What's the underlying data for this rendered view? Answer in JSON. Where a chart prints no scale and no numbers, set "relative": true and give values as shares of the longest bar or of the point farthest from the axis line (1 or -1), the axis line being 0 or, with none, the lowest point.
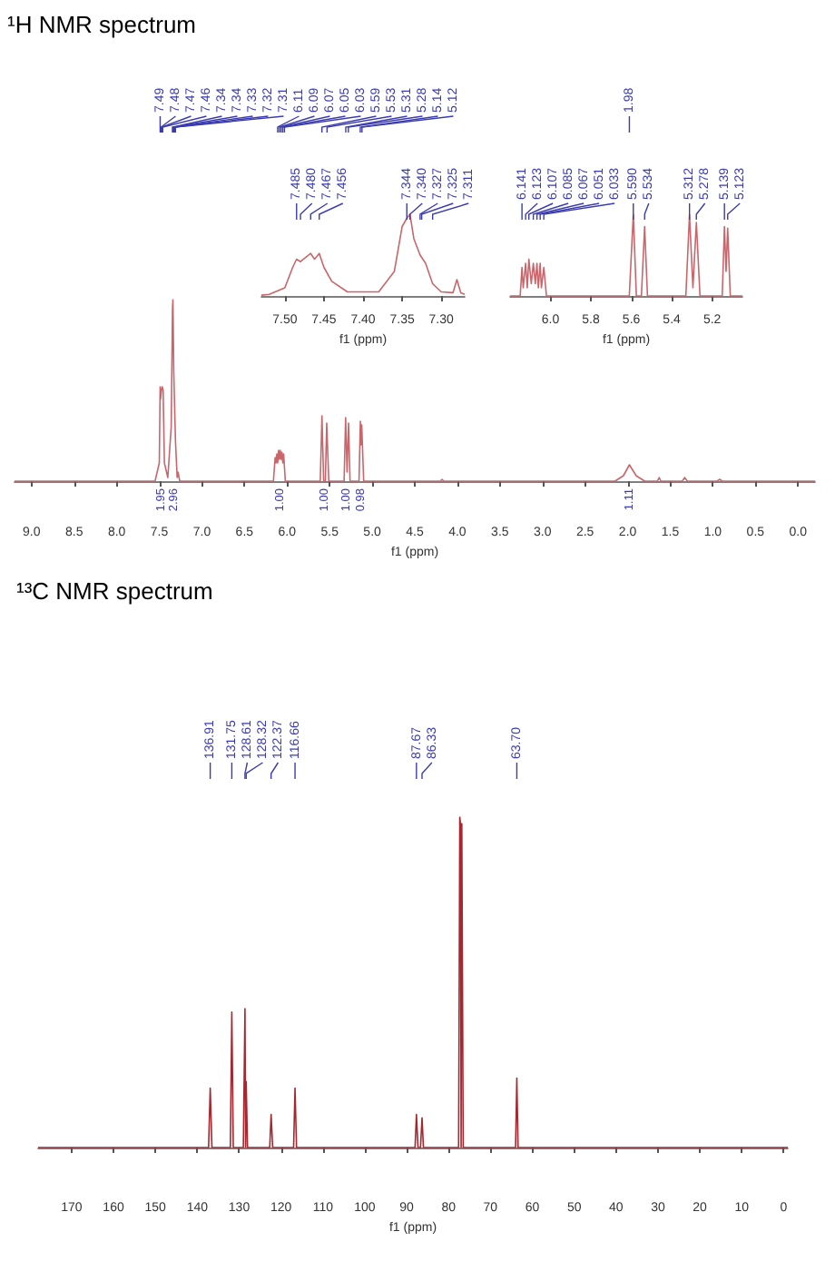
{
  "chart_data": [
    {
      "type": "line",
      "xlabel": "f1 (ppm)",
      "relative": true,
      "color": "#c9666c",
      "xlim": [
        9.2,
        -0.2
      ],
      "xticks": [
        {
          "value": 9,
          "label": "9.0"
        },
        {
          "value": 8.5,
          "label": "8.5"
        },
        {
          "value": 8,
          "label": "8.0"
        },
        {
          "value": 7.5,
          "label": "7.5"
        },
        {
          "value": 7,
          "label": "7.0"
        },
        {
          "value": 6.5,
          "label": "6.5"
        },
        {
          "value": 6,
          "label": "6.0"
        },
        {
          "value": 5.5,
          "label": "5.5"
        },
        {
          "value": 5,
          "label": "5.0"
        },
        {
          "value": 4.5,
          "label": "4.5"
        },
        {
          "value": 4,
          "label": "4.0"
        },
        {
          "value": 3.5,
          "label": "3.5"
        },
        {
          "value": 3,
          "label": "3.0"
        },
        {
          "value": 2.5,
          "label": "2.5"
        },
        {
          "value": 2,
          "label": "2.0"
        },
        {
          "value": 1.5,
          "label": "1.5"
        },
        {
          "value": 1,
          "label": "1.0"
        },
        {
          "value": 0.5,
          "label": "0.5"
        },
        {
          "value": 0,
          "label": "0.0"
        }
      ],
      "x": [
        9.2,
        7.55,
        7.5,
        7.49,
        7.485,
        7.475,
        7.465,
        7.455,
        7.44,
        7.4,
        7.36,
        7.345,
        7.34,
        7.33,
        7.31,
        7.29,
        7.28,
        7.26,
        6.16,
        6.14,
        6.13,
        6.12,
        6.11,
        6.1,
        6.09,
        6.08,
        6.07,
        6.06,
        6.05,
        6.04,
        6.02,
        5.61,
        5.59,
        5.57,
        5.55,
        5.534,
        5.51,
        5.33,
        5.312,
        5.295,
        5.278,
        5.26,
        5.155,
        5.139,
        5.131,
        5.123,
        5.1,
        4.2,
        4.18,
        4.16,
        2.15,
        2.05,
        1.98,
        1.9,
        1.8,
        1.65,
        1.63,
        1.61,
        1.36,
        1.33,
        1.3,
        0.95,
        0.92,
        0.89,
        -0.2
      ],
      "values": [
        0,
        0,
        0.1,
        0.52,
        0.45,
        0.5,
        0.52,
        0.5,
        0.1,
        0.02,
        0.3,
        0.95,
        1,
        0.6,
        0.22,
        0.02,
        0.05,
        0,
        0,
        0.13,
        0.1,
        0.15,
        0.1,
        0.17,
        0.12,
        0.17,
        0.12,
        0.16,
        0.1,
        0.15,
        0,
        0,
        0.36,
        0,
        0,
        0.32,
        0,
        0,
        0.35,
        0.05,
        0.32,
        0,
        0,
        0.33,
        0.2,
        0.31,
        0,
        0,
        0.01,
        0,
        0,
        0.03,
        0.09,
        0.03,
        0,
        0,
        0.02,
        0,
        0,
        0.02,
        0,
        0,
        0.01,
        0,
        0
      ],
      "annotations": [
        "¹H NMR spectrum",
        {
          "text": "7.49",
          "x": 7.49
        },
        {
          "text": "7.48",
          "x": 7.48
        },
        {
          "text": "7.47",
          "x": 7.47
        },
        {
          "text": "7.46",
          "x": 7.46
        },
        {
          "text": "7.34",
          "x": 7.345
        },
        {
          "text": "7.34",
          "x": 7.34
        },
        {
          "text": "7.33",
          "x": 7.33
        },
        {
          "text": "7.32",
          "x": 7.32
        },
        {
          "text": "7.31",
          "x": 7.31
        },
        {
          "text": "6.11",
          "x": 6.11
        },
        {
          "text": "6.09",
          "x": 6.09
        },
        {
          "text": "6.07",
          "x": 6.07
        },
        {
          "text": "6.05",
          "x": 6.05
        },
        {
          "text": "6.03",
          "x": 6.03
        },
        {
          "text": "5.59",
          "x": 5.59
        },
        {
          "text": "5.53",
          "x": 5.53
        },
        {
          "text": "5.31",
          "x": 5.31
        },
        {
          "text": "5.28",
          "x": 5.28
        },
        {
          "text": "5.14",
          "x": 5.14
        },
        {
          "text": "5.12",
          "x": 5.12
        },
        {
          "text": "1.98",
          "x": 1.98
        },
        {
          "text": "1.95",
          "x": 7.48,
          "y": 0
        },
        {
          "text": "2.96",
          "x": 7.33,
          "y": 0
        },
        {
          "text": "1.00",
          "x": 6.08,
          "y": 0
        },
        {
          "text": "1.00",
          "x": 5.56,
          "y": 0
        },
        {
          "text": "1.00",
          "x": 5.3,
          "y": 0
        },
        {
          "text": "0.98",
          "x": 5.13,
          "y": 0
        },
        {
          "text": "1.11",
          "x": 1.98,
          "y": 0
        }
      ]
    },
    {
      "type": "line",
      "xlabel": "f1 (ppm)",
      "relative": true,
      "color": "#c9666c",
      "xlim": [
        7.53,
        7.27
      ],
      "xticks": [
        {
          "value": 7.5,
          "label": "7.50"
        },
        7.45,
        {
          "value": 7.4,
          "label": "7.40"
        },
        7.35,
        {
          "value": 7.3,
          "label": "7.30"
        }
      ],
      "x": [
        7.53,
        7.52,
        7.5,
        7.49,
        7.485,
        7.48,
        7.475,
        7.467,
        7.462,
        7.456,
        7.45,
        7.44,
        7.42,
        7.38,
        7.36,
        7.35,
        7.344,
        7.34,
        7.335,
        7.327,
        7.32,
        7.311,
        7.3,
        7.285,
        7.28,
        7.275,
        7.27
      ],
      "values": [
        0.01,
        0.02,
        0.1,
        0.35,
        0.45,
        0.42,
        0.46,
        0.52,
        0.45,
        0.52,
        0.35,
        0.18,
        0.05,
        0.05,
        0.3,
        0.85,
        0.95,
        1,
        0.7,
        0.5,
        0.4,
        0.15,
        0.05,
        0.04,
        0.2,
        0.04,
        0.02
      ],
      "annotations": [
        {
          "text": "7.485",
          "x": 7.485
        },
        {
          "text": "7.480",
          "x": 7.48
        },
        {
          "text": "7.467",
          "x": 7.467
        },
        {
          "text": "7.456",
          "x": 7.456
        },
        {
          "text": "7.344",
          "x": 7.344
        },
        {
          "text": "7.340",
          "x": 7.34
        },
        {
          "text": "7.327",
          "x": 7.327
        },
        {
          "text": "7.325",
          "x": 7.325
        },
        {
          "text": "7.311",
          "x": 7.311
        }
      ]
    },
    {
      "type": "line",
      "xlabel": "f1 (ppm)",
      "relative": true,
      "color": "#c9666c",
      "xlim": [
        6.2,
        5.05
      ],
      "xticks": [
        {
          "value": 6,
          "label": "6.0"
        },
        {
          "value": 5.8,
          "label": "5.8"
        },
        {
          "value": 5.6,
          "label": "5.6"
        },
        {
          "value": 5.4,
          "label": "5.4"
        },
        {
          "value": 5.2,
          "label": "5.2"
        }
      ],
      "x": [
        6.2,
        6.15,
        6.141,
        6.135,
        6.123,
        6.115,
        6.107,
        6.095,
        6.085,
        6.075,
        6.067,
        6.06,
        6.051,
        6.045,
        6.033,
        6.02,
        5.61,
        5.59,
        5.575,
        5.55,
        5.534,
        5.52,
        5.33,
        5.312,
        5.295,
        5.278,
        5.26,
        5.15,
        5.139,
        5.131,
        5.123,
        5.11,
        5.05
      ],
      "values": [
        0,
        0,
        0.35,
        0.1,
        0.4,
        0.1,
        0.45,
        0.15,
        0.4,
        0.15,
        0.4,
        0.1,
        0.4,
        0.1,
        0.35,
        0,
        0,
        1,
        0,
        0,
        0.85,
        0,
        0,
        1,
        0.1,
        0.9,
        0,
        0,
        0.85,
        0.3,
        0.83,
        0,
        0
      ],
      "annotations": [
        {
          "text": "6.141",
          "x": 6.141
        },
        {
          "text": "6.123",
          "x": 6.123
        },
        {
          "text": "6.107",
          "x": 6.107
        },
        {
          "text": "6.085",
          "x": 6.085
        },
        {
          "text": "6.067",
          "x": 6.067
        },
        {
          "text": "6.051",
          "x": 6.051
        },
        {
          "text": "6.033",
          "x": 6.033
        },
        {
          "text": "5.590",
          "x": 5.59
        },
        {
          "text": "5.534",
          "x": 5.534
        },
        {
          "text": "5.312",
          "x": 5.312
        },
        {
          "text": "5.278",
          "x": 5.278
        },
        {
          "text": "5.139",
          "x": 5.139
        },
        {
          "text": "5.123",
          "x": 5.123
        }
      ]
    },
    {
      "type": "line",
      "title": "¹³C NMR spectrum",
      "xlabel": "f1 (ppm)",
      "relative": true,
      "color": "#a8262e",
      "xlim": [
        178,
        -1
      ],
      "xticks": [
        170,
        160,
        150,
        140,
        130,
        120,
        110,
        100,
        90,
        80,
        70,
        60,
        50,
        40,
        30,
        20,
        10,
        0
      ],
      "x": [
        178,
        137.3,
        136.91,
        136.5,
        132.1,
        131.75,
        131.4,
        129,
        128.61,
        128.45,
        128.32,
        128,
        122.7,
        122.37,
        122,
        117,
        116.66,
        116.3,
        88,
        87.67,
        87.3,
        86.7,
        86.33,
        86,
        77.6,
        77.32,
        77.16,
        77,
        76.84,
        76.5,
        64,
        63.7,
        63.4,
        -1
      ],
      "values": [
        0,
        0,
        0.18,
        0,
        0,
        0.41,
        0,
        0,
        0.42,
        0,
        0.2,
        0,
        0,
        0.1,
        0,
        0,
        0.18,
        0,
        0,
        0.1,
        0,
        0,
        0.09,
        0,
        0,
        1,
        0.98,
        0,
        0.98,
        0,
        0,
        0.21,
        0,
        0
      ],
      "annotations": [
        {
          "text": "136.91",
          "x": 136.91
        },
        {
          "text": "131.75",
          "x": 131.75
        },
        {
          "text": "128.61",
          "x": 128.61
        },
        {
          "text": "128.32",
          "x": 128.32
        },
        {
          "text": "122.37",
          "x": 122.37
        },
        {
          "text": "116.66",
          "x": 116.66
        },
        {
          "text": "87.67",
          "x": 87.67
        },
        {
          "text": "86.33",
          "x": 86.33
        },
        {
          "text": "63.70",
          "x": 63.7
        }
      ]
    }
  ]
}
